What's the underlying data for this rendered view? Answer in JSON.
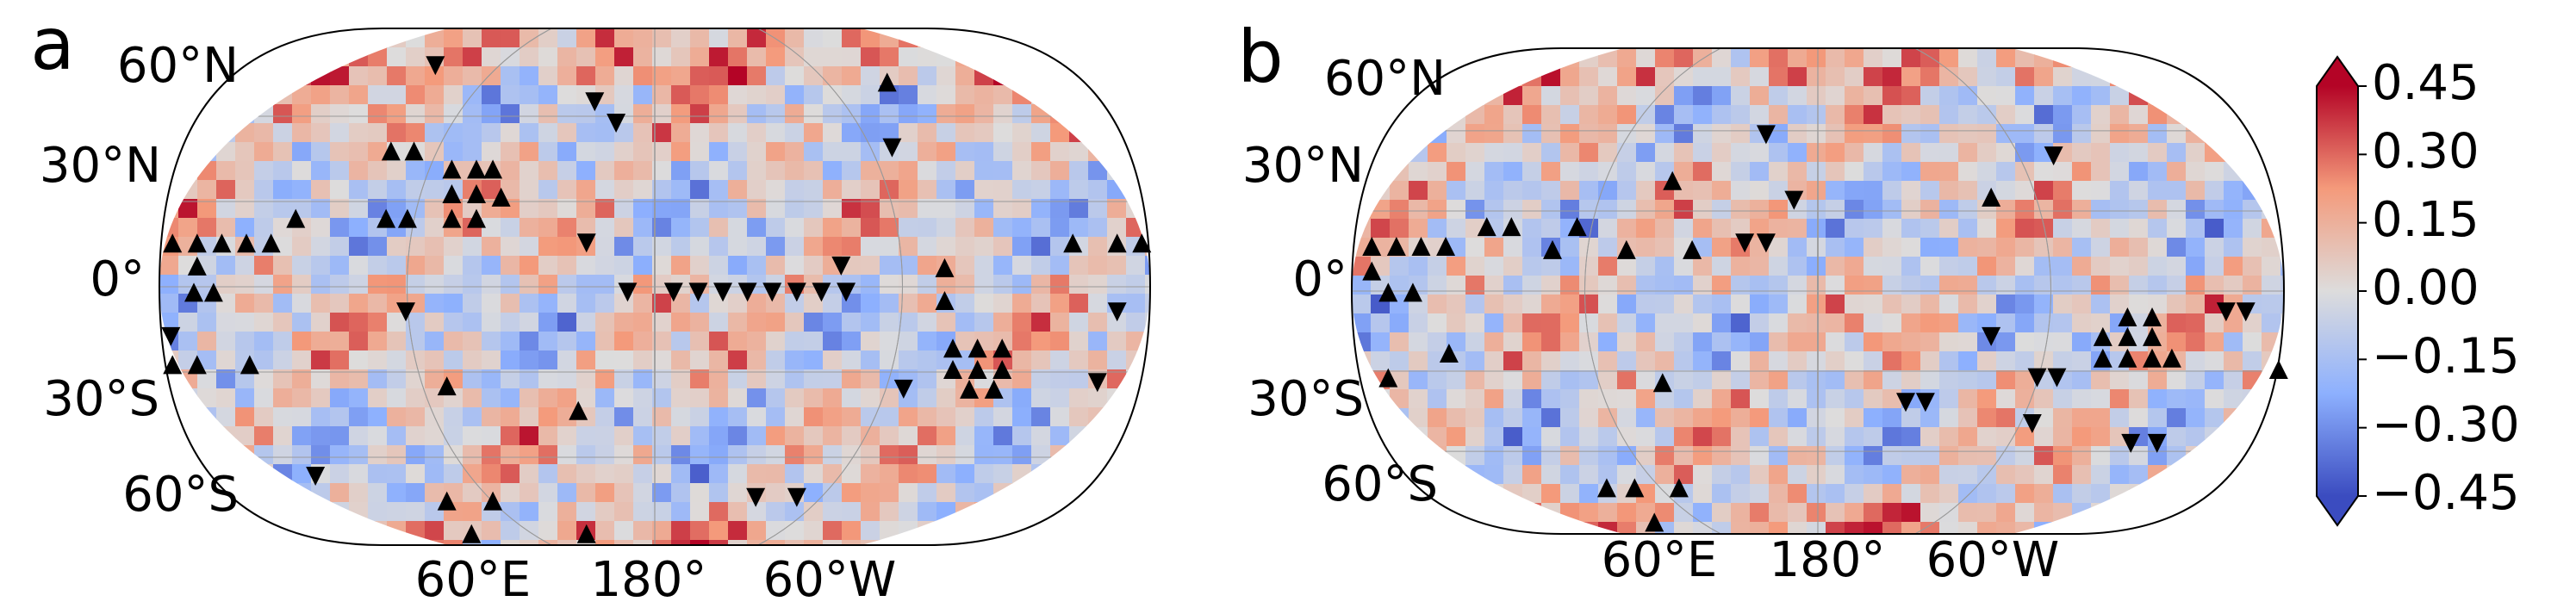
{
  "panels": [
    {
      "label": "a",
      "lat_labels": [
        "60°N",
        "30°N",
        "0°",
        "30°S",
        "60°S"
      ],
      "lon_labels": [
        "60°E",
        "180°",
        "60°W"
      ]
    },
    {
      "label": "b",
      "lat_labels": [
        "60°N",
        "30°N",
        "0°",
        "30°S",
        "60°S"
      ],
      "lon_labels": [
        "60°E",
        "180°",
        "60°W"
      ]
    }
  ],
  "colorbar": {
    "lim": [
      -0.45,
      0.45
    ],
    "ticks": [
      0.45,
      {
        "value": 0.3,
        "label": "0.30"
      },
      0.15,
      {
        "value": 0,
        "label": "0.00"
      },
      {
        "value": -0.15,
        "label": "−0.15"
      },
      {
        "value": -0.3,
        "label": "−0.30"
      },
      {
        "value": -0.45,
        "label": "−0.45"
      }
    ]
  }
}
